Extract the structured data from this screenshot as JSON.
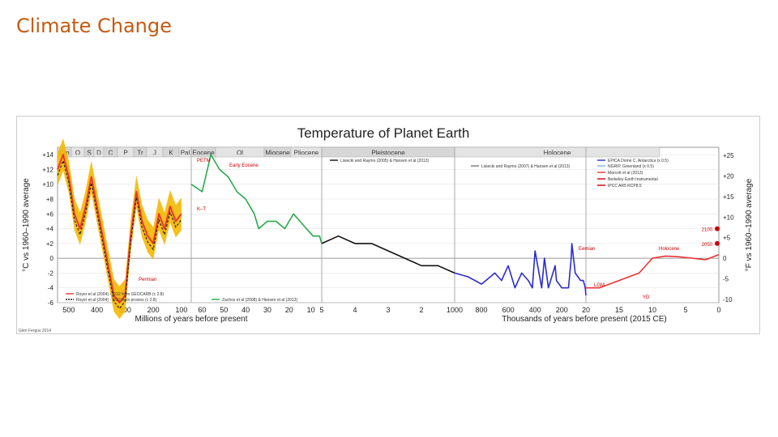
{
  "slide_title": "Climate Change",
  "credit": "Glen Fergus 2014",
  "chart_data": {
    "type": "line",
    "title": "Temperature of Planet Earth",
    "colors": {
      "title": "#c55a11",
      "paleozoic": "#e33",
      "uncertainty": "#f5b800",
      "cenozoic": "#2aaa4a",
      "pliocene": "#111",
      "epica": "#2b2bd1",
      "ngrip": "#77bcd8",
      "marcott": "#e33",
      "projection": "#c00"
    },
    "periods": [
      {
        "label": "Cm"
      },
      {
        "label": "O"
      },
      {
        "label": "S"
      },
      {
        "label": "D"
      },
      {
        "label": "C"
      },
      {
        "label": "P"
      },
      {
        "label": "Tr"
      },
      {
        "label": "J"
      },
      {
        "label": "K"
      },
      {
        "label": "Pal"
      },
      {
        "label": "Eocene"
      },
      {
        "label": "Ol"
      },
      {
        "label": "Miocene"
      },
      {
        "label": "Pliocene"
      },
      {
        "label": "Pleistocene"
      },
      {
        "label": "Holocene"
      }
    ],
    "xlabel_left": "Millions of years before present",
    "xlabel_right": "Thousands of years before present (2015 CE)",
    "ylabel_left": "°C vs 1960–1990 average",
    "ylabel_right": "°F vs 1960–1990 average",
    "ylim": [
      -6,
      15
    ],
    "y_ticks_left": [
      "+14",
      "+12",
      "+10",
      "+8",
      "+6",
      "+4",
      "+2",
      "0",
      "-2",
      "-4",
      "-6"
    ],
    "y_ticks_right": [
      "+25",
      "+20",
      "+15",
      "+10",
      "+5",
      "0",
      "-5",
      "-10"
    ],
    "x_ticks": [
      "500",
      "400",
      "300",
      "200",
      "100",
      "60",
      "50",
      "40",
      "30",
      "20",
      "10",
      "5",
      "4",
      "3",
      "2",
      "1000",
      "800",
      "600",
      "400",
      "200",
      "20",
      "15",
      "10",
      "5",
      "0"
    ],
    "legends": {
      "royer_a": "Royer et al (2004) - CO2 from GEOCARB (c 2.8)",
      "royer_b": "Royer et al (2004) - CO2 from proxies (c 2.8)",
      "zachos": "Zachos et al (2008) & Hansen et al (2013)",
      "lisiecki": "Lisiecki and Raymo (2005) & Hansen et al (2013)",
      "epica": "EPICA Dome C, Antarctica (x 0.5)",
      "ngrip": "NGRIP, Greenland (x 0.5)",
      "lisiecki_b": "Lisiecki and Raymo (2007) & Hansen et al (2013)",
      "marcott": "Marcott et al (2013)",
      "berkeley": "Berkeley Earth Instrumental",
      "ipcc": "IPCC AR5 RCP8.5"
    },
    "annotations": {
      "petm": "PETM",
      "eocene_opt": "Early Eocene",
      "kt": "K–T",
      "permian": "Permian",
      "eemian": "Eemian",
      "lgm": "LGM",
      "ytd": "YD",
      "holocene_opt": "Holocene",
      "y2100": "2100",
      "y2050": "2050"
    },
    "series": [
      {
        "name": "Royer et al (2004) - CO2 from GEOCARB",
        "segment": "0-100 Ma scale",
        "x": [
          540,
          520,
          500,
          480,
          460,
          440,
          420,
          400,
          380,
          360,
          340,
          320,
          300,
          280,
          260,
          240,
          220,
          200,
          180,
          160,
          140,
          120,
          100
        ],
        "values": [
          12,
          14,
          11,
          6,
          4,
          7,
          11,
          7,
          3,
          -1,
          -5,
          -6,
          -5,
          3,
          9,
          5,
          3,
          2,
          6,
          4,
          7,
          5,
          6
        ]
      },
      {
        "name": "Zachos et al (2008) & Hansen et al (2013)",
        "segment": "65-5 Ma",
        "x": [
          65,
          60,
          56,
          52,
          48,
          44,
          40,
          36,
          34,
          30,
          26,
          22,
          18,
          15,
          12,
          9,
          6,
          5
        ],
        "values": [
          10,
          9,
          14,
          12,
          11,
          9,
          8,
          6,
          4,
          5,
          5,
          4,
          6,
          5,
          4,
          3,
          3,
          2
        ]
      },
      {
        "name": "Lisiecki and Raymo (2005)",
        "segment": "5-1 Ma",
        "x": [
          5,
          4.5,
          4,
          3.5,
          3,
          2.5,
          2,
          1.5,
          1
        ],
        "values": [
          2,
          3,
          2,
          2,
          1,
          0,
          -1,
          -1,
          -2
        ]
      },
      {
        "name": "EPICA Dome C (x 0.5)",
        "segment": "1000-20 ka",
        "x": [
          1000,
          900,
          800,
          700,
          650,
          600,
          550,
          500,
          450,
          420,
          400,
          350,
          330,
          300,
          250,
          240,
          200,
          150,
          130,
          125,
          100,
          60,
          40,
          25,
          20
        ],
        "values": [
          -2,
          -2.5,
          -3.5,
          -2,
          -3,
          -1,
          -4,
          -2,
          -3,
          -4,
          1,
          -4,
          0,
          -4,
          -1,
          -3,
          -4,
          -4,
          0,
          2,
          -2,
          -3,
          -3,
          -4,
          -5
        ]
      },
      {
        "name": "Marcott et al (2013)",
        "segment": "20-0 ka",
        "x": [
          20,
          18,
          15,
          12,
          10,
          8,
          6,
          4,
          2,
          0
        ],
        "values": [
          -4,
          -4,
          -3,
          -2,
          0,
          0.3,
          0.2,
          0,
          -0.2,
          0.5
        ]
      }
    ],
    "projection_points": [
      {
        "year": "2050",
        "value": 2
      },
      {
        "year": "2100",
        "value": 4
      }
    ]
  }
}
